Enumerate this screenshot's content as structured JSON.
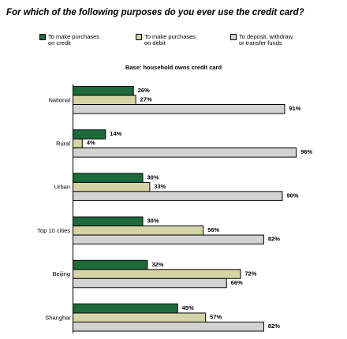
{
  "chart_data": {
    "type": "bar",
    "orientation": "horizontal",
    "title": "For which of the following purposes do you ever use the credit card?",
    "subtitle": "Base: household owns credit card",
    "categories": [
      "National",
      "Rural",
      "Urban",
      "Top 10 cities",
      "Beijing",
      "Shanghai"
    ],
    "series": [
      {
        "name": "To make purchases\non credit",
        "color": "#1d6b3b",
        "values": [
          26,
          14,
          30,
          30,
          32,
          45
        ],
        "labels": [
          "26%",
          "14%",
          "30%",
          "30%",
          "32%",
          "45%"
        ]
      },
      {
        "name": "To make purchases\non debit",
        "color": "#d6d4a6",
        "values": [
          27,
          4,
          33,
          56,
          72,
          57
        ],
        "labels": [
          "27%",
          "4%",
          "33%",
          "56%",
          "72%",
          "57%"
        ]
      },
      {
        "name": "To deposit, withdraw,\nor transfer funds",
        "color": "#d3d3d3",
        "values": [
          91,
          96,
          90,
          82,
          66,
          82
        ],
        "labels": [
          "91%",
          "96%",
          "90%",
          "82%",
          "66%",
          "82%"
        ]
      }
    ],
    "xlim": [
      0,
      100
    ],
    "grid": false,
    "legend_position": "top"
  }
}
